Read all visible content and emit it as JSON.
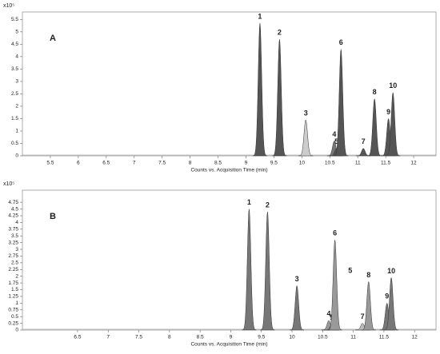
{
  "chart_data": [
    {
      "type": "chromatogram",
      "panel_label": "A",
      "y_unit": "x10⁵",
      "xlabel": "Counts vs. Acquisition Time (min)",
      "xlim": [
        5.0,
        12.4
      ],
      "ylim": [
        0,
        5.8
      ],
      "xticks": [
        5.5,
        6,
        6.5,
        7,
        7.5,
        8,
        8.5,
        9,
        9.5,
        10,
        10.5,
        11,
        11.5,
        12
      ],
      "yticks": [
        0,
        0.5,
        1,
        1.5,
        2,
        2.5,
        3,
        3.5,
        4,
        4.5,
        5,
        5.5
      ],
      "peaks": [
        {
          "label": "1",
          "x": 9.25,
          "y": 5.35,
          "color": "#555555"
        },
        {
          "label": "2",
          "x": 9.6,
          "y": 4.7,
          "color": "#555555"
        },
        {
          "label": "3",
          "x": 10.07,
          "y": 1.45,
          "color": "#cccccc"
        },
        {
          "label": "4",
          "x": 10.58,
          "y": 0.6,
          "color": "#777777"
        },
        {
          "label": "5",
          "x": 10.62,
          "y": 0.3,
          "color": "#555555"
        },
        {
          "label": "6",
          "x": 10.7,
          "y": 4.3,
          "color": "#555555"
        },
        {
          "label": "7",
          "x": 11.1,
          "y": 0.3,
          "color": "#555555"
        },
        {
          "label": "8",
          "x": 11.3,
          "y": 2.3,
          "color": "#555555"
        },
        {
          "label": "9",
          "x": 11.55,
          "y": 1.5,
          "color": "#555555"
        },
        {
          "label": "10",
          "x": 11.63,
          "y": 2.55,
          "color": "#555555"
        }
      ]
    },
    {
      "type": "chromatogram",
      "panel_label": "B",
      "y_unit": "x10⁵",
      "xlabel": "Counts vs. Acquisition Time (min)",
      "xlim": [
        5.6,
        12.35
      ],
      "ylim": [
        0,
        5.2
      ],
      "xticks": [
        6.5,
        7,
        7.5,
        8,
        8.5,
        9,
        9.5,
        10,
        10.5,
        11,
        11.5,
        12
      ],
      "yticks": [
        0,
        0.25,
        0.5,
        0.75,
        1,
        1.25,
        1.5,
        1.75,
        2,
        2.25,
        2.5,
        2.75,
        3,
        3.25,
        3.5,
        3.75,
        4,
        4.25,
        4.5,
        4.75
      ],
      "peaks": [
        {
          "label": "1",
          "x": 9.3,
          "y": 4.5,
          "color": "#777777"
        },
        {
          "label": "2",
          "x": 9.6,
          "y": 4.4,
          "color": "#777777"
        },
        {
          "label": "3",
          "x": 10.08,
          "y": 1.65,
          "color": "#777777"
        },
        {
          "label": "4",
          "x": 10.6,
          "y": 0.35,
          "color": "#999999"
        },
        {
          "label": "5",
          "x": 10.65,
          "y": 0.2,
          "color": "#777777"
        },
        {
          "label": "6",
          "x": 10.7,
          "y": 3.35,
          "color": "#999999"
        },
        {
          "label": "7",
          "x": 11.15,
          "y": 0.25,
          "color": "#bbbbbb"
        },
        {
          "label": "8",
          "x": 11.25,
          "y": 1.8,
          "color": "#999999"
        },
        {
          "label": "9",
          "x": 11.55,
          "y": 1.0,
          "color": "#777777"
        },
        {
          "label": "10",
          "x": 11.62,
          "y": 1.95,
          "color": "#777777"
        }
      ],
      "annotations": [
        {
          "text": "5",
          "x": 10.95,
          "y": 2.2
        }
      ]
    }
  ]
}
